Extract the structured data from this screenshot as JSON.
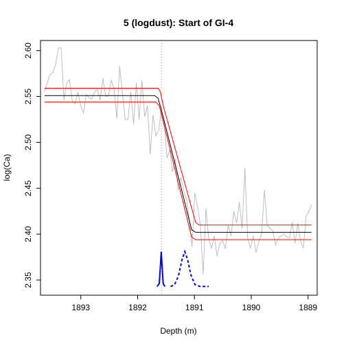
{
  "chart_data": {
    "type": "line",
    "title": "5 (logdust): Start of GI-4",
    "xlabel": "Depth (m)",
    "ylabel": "log(Ca)",
    "xlim": [
      1893.71,
      1888.84
    ],
    "ylim": [
      2.3335,
      2.611
    ],
    "xticks": [
      1893,
      1892,
      1891,
      1890,
      1889
    ],
    "yticks": [
      2.35,
      {
        "value": 2.4,
        "label": "2.40"
      },
      2.45,
      {
        "value": 2.5,
        "label": "2.50"
      },
      2.55,
      {
        "value": 2.6,
        "label": "2.60"
      }
    ],
    "vline": {
      "x": 1891.58,
      "color": "#999999"
    },
    "series": [
      {
        "color": "#bebebe",
        "dash": "solid",
        "width": 1,
        "x": [
          1893.64,
          1893.591,
          1893.542,
          1893.493,
          1893.444,
          1893.395,
          1893.346,
          1893.297,
          1893.248,
          1893.199,
          1893.15,
          1893.101,
          1893.052,
          1893.003,
          1892.954,
          1892.905,
          1892.856,
          1892.807,
          1892.758,
          1892.709,
          1892.66,
          1892.611,
          1892.562,
          1892.513,
          1892.464,
          1892.415,
          1892.366,
          1892.317,
          1892.268,
          1892.219,
          1892.17,
          1892.121,
          1892.072,
          1892.023,
          1891.974,
          1891.925,
          1891.876,
          1891.827,
          1891.778,
          1891.729,
          1891.68,
          1891.631,
          1891.582,
          1891.533,
          1891.484,
          1891.435,
          1891.386,
          1891.337,
          1891.288,
          1891.239,
          1891.19,
          1891.141,
          1891.092,
          1891.043,
          1890.994,
          1890.945,
          1890.896,
          1890.847,
          1890.798,
          1890.749,
          1890.7,
          1890.651,
          1890.602,
          1890.553,
          1890.504,
          1890.455,
          1890.406,
          1890.357,
          1890.308,
          1890.259,
          1890.21,
          1890.161,
          1890.112,
          1890.063,
          1890.014,
          1889.965,
          1889.916,
          1889.867,
          1889.818,
          1889.769,
          1889.72,
          1889.671,
          1889.622,
          1889.573,
          1889.524,
          1889.475,
          1889.426,
          1889.377,
          1889.328,
          1889.279,
          1889.23,
          1889.181,
          1889.132,
          1889.083,
          1889.034,
          1888.985,
          1888.936
        ],
        "values": [
          2.555,
          2.565,
          2.574,
          2.576,
          2.585,
          2.603,
          2.603,
          2.546,
          2.565,
          2.568,
          2.545,
          2.542,
          2.555,
          2.54,
          2.532,
          2.552,
          2.549,
          2.547,
          2.555,
          2.558,
          2.546,
          2.57,
          2.55,
          2.551,
          2.568,
          2.558,
          2.526,
          2.583,
          2.553,
          2.525,
          2.525,
          2.555,
          2.52,
          2.565,
          2.525,
          2.568,
          2.528,
          2.54,
          2.487,
          2.53,
          2.507,
          2.513,
          2.535,
          2.522,
          2.483,
          2.492,
          2.468,
          2.482,
          2.448,
          2.462,
          2.447,
          2.438,
          2.416,
          2.386,
          2.445,
          2.43,
          2.41,
          2.356,
          2.428,
          2.395,
          2.385,
          2.398,
          2.376,
          2.39,
          2.393,
          2.384,
          2.41,
          2.398,
          2.425,
          2.412,
          2.435,
          2.406,
          2.472,
          2.395,
          2.385,
          2.398,
          2.38,
          2.392,
          2.4,
          2.448,
          2.41,
          2.406,
          2.404,
          2.388,
          2.396,
          2.398,
          2.4,
          2.397,
          2.396,
          2.413,
          2.39,
          2.412,
          2.392,
          2.385,
          2.42,
          2.425,
          2.432
        ]
      },
      {
        "color": "#000000",
        "dash": "solid",
        "width": 1,
        "x": [
          1893.64,
          1891.7,
          1891.64,
          1891.58,
          1891.05,
          1890.98,
          1888.94
        ],
        "values": [
          2.551,
          2.551,
          2.548,
          2.535,
          2.405,
          2.402,
          2.402
        ]
      },
      {
        "color": "#ff0000",
        "dash": "solid",
        "width": 1,
        "x": [
          1893.64,
          1891.64,
          1891.6,
          1891.55,
          1890.98,
          1890.92,
          1888.94
        ],
        "values": [
          2.559,
          2.559,
          2.555,
          2.54,
          2.413,
          2.41,
          2.41
        ]
      },
      {
        "color": "#ff0000",
        "dash": "solid",
        "width": 1,
        "x": [
          1893.64,
          1891.68,
          1891.62,
          1891.05,
          1890.98,
          1888.94
        ],
        "values": [
          2.544,
          2.544,
          2.54,
          2.397,
          2.394,
          2.394
        ]
      },
      {
        "color": "#0000ff",
        "dash": "solid",
        "width": 2,
        "x": [
          1891.66,
          1891.62,
          1891.6,
          1891.585,
          1891.57,
          1891.55,
          1891.52
        ],
        "values": [
          2.343,
          2.346,
          2.365,
          2.381,
          2.365,
          2.346,
          2.343
        ]
      },
      {
        "color": "#0000ff",
        "dash": "dashed",
        "width": 2,
        "x": [
          1891.42,
          1891.35,
          1891.28,
          1891.22,
          1891.17,
          1891.12,
          1891.06,
          1890.99,
          1890.9,
          1890.75
        ],
        "values": [
          2.343,
          2.345,
          2.355,
          2.372,
          2.381,
          2.372,
          2.355,
          2.345,
          2.343,
          2.343
        ]
      }
    ]
  }
}
